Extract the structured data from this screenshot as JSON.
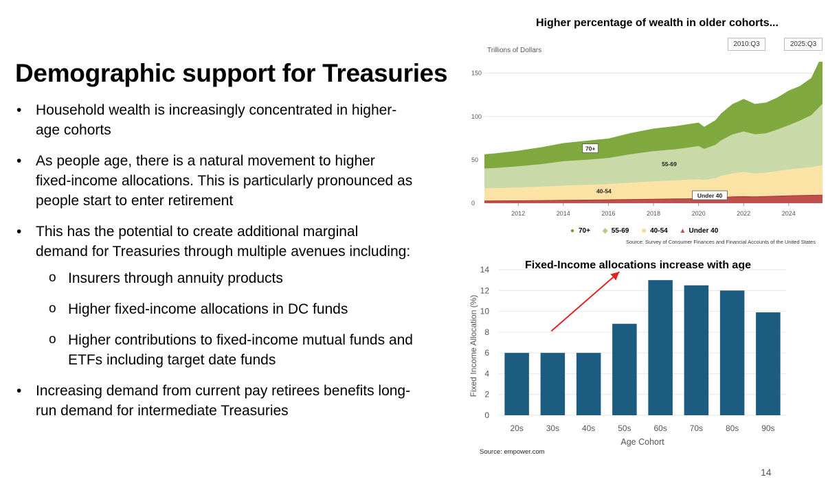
{
  "slide": {
    "title": "Demographic support for Treasuries",
    "bullets": [
      "Household wealth is increasingly concentrated in higher-age cohorts",
      "As people age, there is a natural movement to higher fixed-income allocations.  This is particularly pronounced as people start to enter retirement",
      "This has the potential to create additional marginal demand for Treasuries through multiple avenues including:",
      "Increasing demand from current pay retirees benefits long-run demand for intermediate Treasuries"
    ],
    "sub_bullets": [
      "Insurers through annuity products",
      "Higher fixed-income allocations in DC funds",
      "Higher contributions to fixed-income mutual funds and ETFs including target date funds"
    ],
    "page_number": "14"
  },
  "colors": {
    "age_70_plus": "#7fa93f",
    "age_55_69": "#c9d9a8",
    "age_40_54": "#fbe3a6",
    "under_40": "#c0504d",
    "bar": "#1b5c80",
    "arrow": "#e3231e"
  },
  "chart_data": [
    {
      "type": "area",
      "title": "Higher percentage of wealth in older cohorts...",
      "unit_label": "Trillions of Dollars",
      "range_start": "2010:Q3",
      "range_end": "2025:Q3",
      "x_ticks": [
        "2012",
        "2014",
        "2016",
        "2018",
        "2020",
        "2022",
        "2024"
      ],
      "y_ticks": [
        "0",
        "50",
        "100",
        "150"
      ],
      "ylim": [
        0,
        160
      ],
      "stacked": true,
      "x": [
        2010.5,
        2011,
        2012,
        2013,
        2014,
        2015,
        2016,
        2017,
        2018,
        2019,
        2019.5,
        2020,
        2020.25,
        2020.75,
        2021,
        2021.5,
        2022,
        2022.5,
        2023,
        2023.5,
        2024,
        2024.5,
        2025,
        2025.5
      ],
      "series": [
        {
          "name": "Under 40",
          "values": [
            2.5,
            2.6,
            2.8,
            3,
            3.3,
            3.5,
            3.8,
            4.2,
            4.5,
            4.8,
            5.0,
            5.2,
            5.3,
            5.8,
            6.5,
            7.2,
            7.5,
            7.3,
            7.6,
            8.0,
            8.4,
            8.7,
            9.0,
            9.3
          ]
        },
        {
          "name": "40-54",
          "values": [
            14.5,
            14.6,
            15.2,
            16.0,
            17.0,
            17.5,
            18.2,
            19.3,
            20.5,
            21.4,
            22.0,
            22.3,
            21.3,
            23.0,
            25.0,
            27.0,
            28.3,
            27.0,
            27.5,
            29.0,
            30.5,
            31.5,
            32.5,
            34.5
          ]
        },
        {
          "name": "55-69",
          "values": [
            23.0,
            23.3,
            24.5,
            26.0,
            28.0,
            29.0,
            30.0,
            33.0,
            35.0,
            36.0,
            37.0,
            38.3,
            36.0,
            38.5,
            41.0,
            45.0,
            47.0,
            45.2,
            45.5,
            48.0,
            51.0,
            55.0,
            60.0,
            71.0
          ]
        },
        {
          "name": "70+",
          "values": [
            16.5,
            17.0,
            18.0,
            19.5,
            21.0,
            22.0,
            22.5,
            24.5,
            26.0,
            26.8,
            27.0,
            27.2,
            25.5,
            28.5,
            31.0,
            35.0,
            37.5,
            35.0,
            35.5,
            37.0,
            40.0,
            40.0,
            43.0,
            57.0
          ]
        }
      ],
      "in_chart_labels": [
        "70+",
        "55-69",
        "40-54",
        "Under 40"
      ],
      "legend": [
        "70+",
        "55-69",
        "40-54",
        "Under 40"
      ],
      "legend_position": "bottom",
      "source": "Source: Survey of Consumer Finances and Financial Accounts of the United States",
      "grid": true
    },
    {
      "type": "bar",
      "title": "Fixed-Income allocations increase with age",
      "categories": [
        "20s",
        "30s",
        "40s",
        "50s",
        "60s",
        "70s",
        "80s",
        "90s"
      ],
      "values": [
        6,
        6,
        6,
        8.8,
        13,
        12.5,
        12,
        9.9
      ],
      "xlabel": "Age Cohort",
      "ylabel": "Fixed Income Allocation (%)",
      "ylim": [
        0,
        14
      ],
      "y_ticks": [
        "0",
        "2",
        "4",
        "6",
        "8",
        "10",
        "12",
        "14"
      ],
      "source": "Source: empower.com",
      "annotation": "red arrow pointing upward from the 30s bar toward the 60s bar",
      "grid": true
    }
  ]
}
